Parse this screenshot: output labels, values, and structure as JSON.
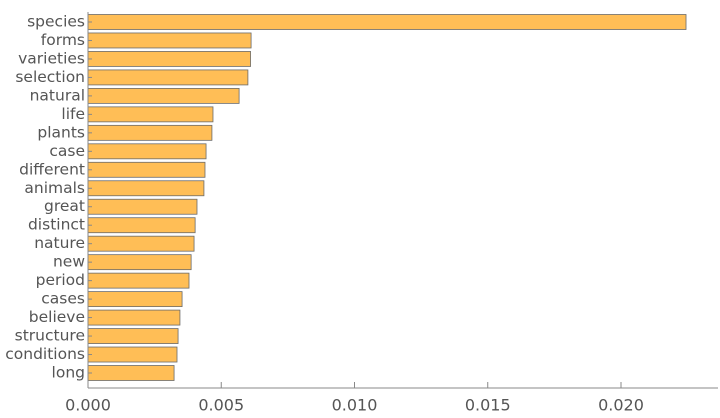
{
  "chart_data": {
    "type": "barh",
    "categories": [
      "species",
      "forms",
      "varieties",
      "selection",
      "natural",
      "life",
      "plants",
      "case",
      "different",
      "animals",
      "great",
      "distinct",
      "nature",
      "new",
      "period",
      "cases",
      "believe",
      "structure",
      "conditions",
      "long"
    ],
    "values": [
      0.02244,
      0.00612,
      0.0061,
      0.006,
      0.00567,
      0.00469,
      0.00465,
      0.00443,
      0.00439,
      0.00435,
      0.00409,
      0.00402,
      0.00398,
      0.00387,
      0.00379,
      0.00353,
      0.00345,
      0.00338,
      0.00334,
      0.00323
    ],
    "color": "#ffbe56",
    "xlim": [
      0,
      0.02364
    ],
    "xticks": [
      {
        "value": 0,
        "label": "0.000"
      },
      {
        "value": 0.005,
        "label": "0.005"
      },
      {
        "value": 0.01,
        "label": "0.010"
      },
      {
        "value": 0.015,
        "label": "0.015"
      },
      {
        "value": 0.02,
        "label": "0.020"
      }
    ]
  }
}
